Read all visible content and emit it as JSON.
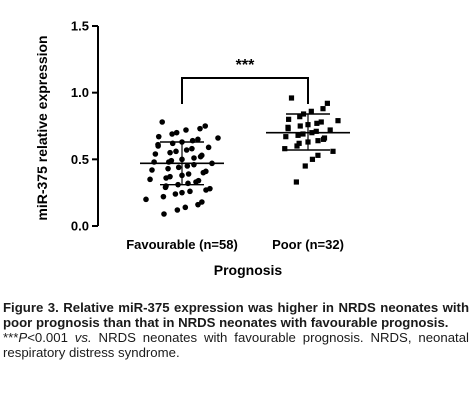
{
  "chart_data": {
    "type": "scatter",
    "ylabel": "miR-375 relative expression",
    "xlabel": "Prognosis",
    "ylim": [
      0.0,
      1.5
    ],
    "yticks": [
      "0.0",
      "0.5",
      "1.0",
      "1.5"
    ],
    "categories": [
      "Favourable (n=58)",
      "Poor (n=32)"
    ],
    "series": [
      {
        "name": "Favourable (n=58)",
        "marker": "circle",
        "mean": 0.47,
        "sd_low": 0.31,
        "sd_high": 0.63,
        "values": [
          0.78,
          0.75,
          0.73,
          0.72,
          0.7,
          0.69,
          0.67,
          0.66,
          0.65,
          0.64,
          0.63,
          0.62,
          0.61,
          0.6,
          0.59,
          0.58,
          0.57,
          0.56,
          0.55,
          0.54,
          0.53,
          0.52,
          0.51,
          0.5,
          0.49,
          0.48,
          0.48,
          0.47,
          0.46,
          0.45,
          0.44,
          0.43,
          0.42,
          0.41,
          0.4,
          0.39,
          0.38,
          0.37,
          0.36,
          0.35,
          0.34,
          0.33,
          0.32,
          0.31,
          0.3,
          0.29,
          0.28,
          0.27,
          0.26,
          0.25,
          0.24,
          0.22,
          0.2,
          0.18,
          0.16,
          0.14,
          0.12,
          0.09
        ]
      },
      {
        "name": "Poor (n=32)",
        "marker": "square",
        "mean": 0.7,
        "sd_low": 0.57,
        "sd_high": 0.84,
        "values": [
          0.96,
          0.92,
          0.88,
          0.86,
          0.84,
          0.82,
          0.8,
          0.79,
          0.78,
          0.77,
          0.76,
          0.75,
          0.74,
          0.73,
          0.72,
          0.71,
          0.7,
          0.69,
          0.68,
          0.67,
          0.66,
          0.65,
          0.64,
          0.63,
          0.62,
          0.6,
          0.58,
          0.56,
          0.53,
          0.5,
          0.45,
          0.33
        ]
      }
    ],
    "annotation": "***",
    "color": "#000000"
  },
  "caption": {
    "main": "Figure 3. Relative miR-375 expression was higher in NRDS neonates with poor prognosis than that in NRDS neonates with favourable prognosis.",
    "note_marker": "***",
    "note_p": "P",
    "note_value": "<0.001 ",
    "note_vs": "vs.",
    "note_rest": " NRDS neonates with favourable prognosis. NRDS, neonatal respiratory distress syndrome."
  }
}
